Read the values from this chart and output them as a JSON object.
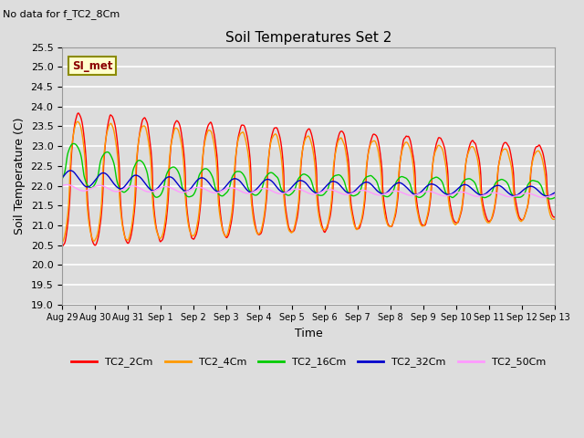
{
  "title": "Soil Temperatures Set 2",
  "no_data_label": "No data for f_TC2_8Cm",
  "site_label": "SI_met",
  "xlabel": "Time",
  "ylabel": "Soil Temperature (C)",
  "ylim": [
    19.0,
    25.5
  ],
  "yticks": [
    19.0,
    19.5,
    20.0,
    20.5,
    21.0,
    21.5,
    22.0,
    22.5,
    23.0,
    23.5,
    24.0,
    24.5,
    25.0,
    25.5
  ],
  "bg_color": "#dddddd",
  "plot_bg_color": "#dddddd",
  "grid_color": "#ffffff",
  "series_colors": {
    "TC2_2Cm": "#ff0000",
    "TC2_4Cm": "#ff9900",
    "TC2_16Cm": "#00cc00",
    "TC2_32Cm": "#0000cc",
    "TC2_50Cm": "#ff99ff"
  },
  "xtick_labels": [
    "Aug 29",
    "Aug 30",
    "Aug 31",
    "Sep 1",
    "Sep 2",
    "Sep 3",
    "Sep 4",
    "Sep 5",
    "Sep 6",
    "Sep 7",
    "Sep 8",
    "Sep 9",
    "Sep 10",
    "Sep 11",
    "Sep 12",
    "Sep 13"
  ],
  "n_points": 2160,
  "start_day": 0,
  "end_day": 15
}
